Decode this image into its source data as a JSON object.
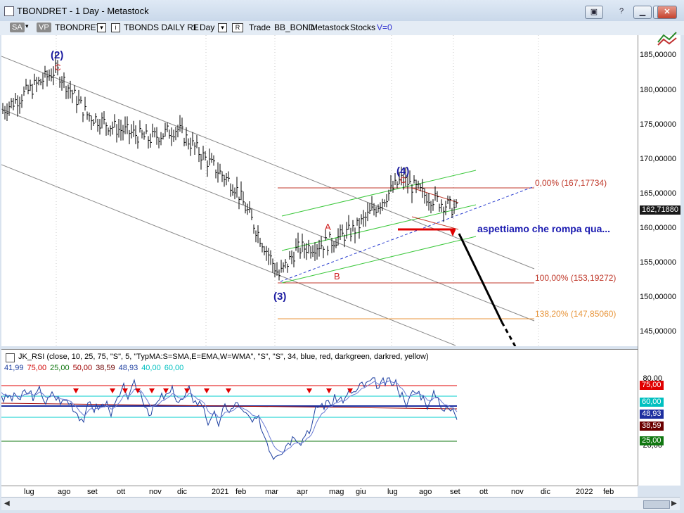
{
  "window": {
    "title": "TBONDRET - 1 Day - Metastock"
  },
  "toolbar": {
    "sa": "SA",
    "vp": "VP",
    "symbol": "TBONDRET",
    "name": "TBONDS DAILY RE",
    "period": "1 Day",
    "r_box": "R",
    "trade": "Trade",
    "template": "BB_BOND",
    "layout": "Metastock",
    "stocks": "Stocks",
    "v": "V=0"
  },
  "price_axis": {
    "labels": [
      "185,00000",
      "180,00000",
      "175,00000",
      "170,00000",
      "165,00000",
      "160,00000",
      "155,00000",
      "150,00000",
      "145,00000"
    ],
    "current": "162,71880"
  },
  "annotations": {
    "wave2": "(2)",
    "wave2_sub": "C",
    "wave3": "(3)",
    "wave4": "(4)",
    "wave4_sub": "C",
    "a": "A",
    "b": "B",
    "comment": "aspettiamo che rompa qua...",
    "fib0": "0,00% (167,17734)",
    "fib100": "100,00% (153,19272)",
    "fib138": "138,20% (147,85060)"
  },
  "indicator": {
    "title": "JK_RSI   (close,  10,  25,  75,  \"S\",  5,  \"TypMA:S=SMA,E=EMA,W=WMA\",  \"S\",  \"S\",  34,  blue,  red,  darkgreen,  darkred,  yellow)",
    "values": [
      {
        "text": "41,99",
        "color": "#1d3fa0"
      },
      {
        "text": "75,00",
        "color": "#d00000"
      },
      {
        "text": "25,00",
        "color": "#117711"
      },
      {
        "text": "50,00",
        "color": "#a00000"
      },
      {
        "text": "38,59",
        "color": "#6b0000"
      },
      {
        "text": "48,93",
        "color": "#1d3fa0"
      },
      {
        "text": "40,00",
        "color": "#00c0c0"
      },
      {
        "text": "60,00",
        "color": "#00c0c0"
      }
    ],
    "axis_labels": [
      "80,00",
      "20,00"
    ],
    "tags": [
      "75,00",
      "60,00",
      "48,93",
      "38,59",
      "25,00"
    ]
  },
  "date_axis": [
    "lug",
    "ago",
    "set",
    "ott",
    "nov",
    "dic",
    "2021",
    "feb",
    "mar",
    "apr",
    "mag",
    "giu",
    "lug",
    "ago",
    "set",
    "ott",
    "nov",
    "dic",
    "2022",
    "feb"
  ],
  "chart_data": {
    "type": "bar",
    "title": "TBONDRET - 1 Day",
    "y_range": [
      143,
      188
    ],
    "keypoints": [
      {
        "x": "lug",
        "y": 177.0
      },
      {
        "x": "ago",
        "y": 183.0
      },
      {
        "x": "set",
        "y": 176.5
      },
      {
        "x": "ott",
        "y": 174.5
      },
      {
        "x": "nov",
        "y": 173.0
      },
      {
        "x": "dic",
        "y": 174.5
      },
      {
        "x": "2021",
        "y": 170.0
      },
      {
        "x": "feb",
        "y": 166.0
      },
      {
        "x": "mar",
        "y": 153.2
      },
      {
        "x": "apr",
        "y": 157.0
      },
      {
        "x": "mag",
        "y": 158.0
      },
      {
        "x": "giu",
        "y": 160.0
      },
      {
        "x": "lug",
        "y": 167.2
      },
      {
        "x": "ago",
        "y": 165.0
      },
      {
        "x": "set",
        "y": 162.7
      }
    ],
    "fib_levels": [
      {
        "label": "0,00%",
        "value": 167.17734
      },
      {
        "label": "100,00%",
        "value": 153.19272
      },
      {
        "label": "138,20%",
        "value": 147.8506
      }
    ],
    "last_price": 162.7188
  }
}
